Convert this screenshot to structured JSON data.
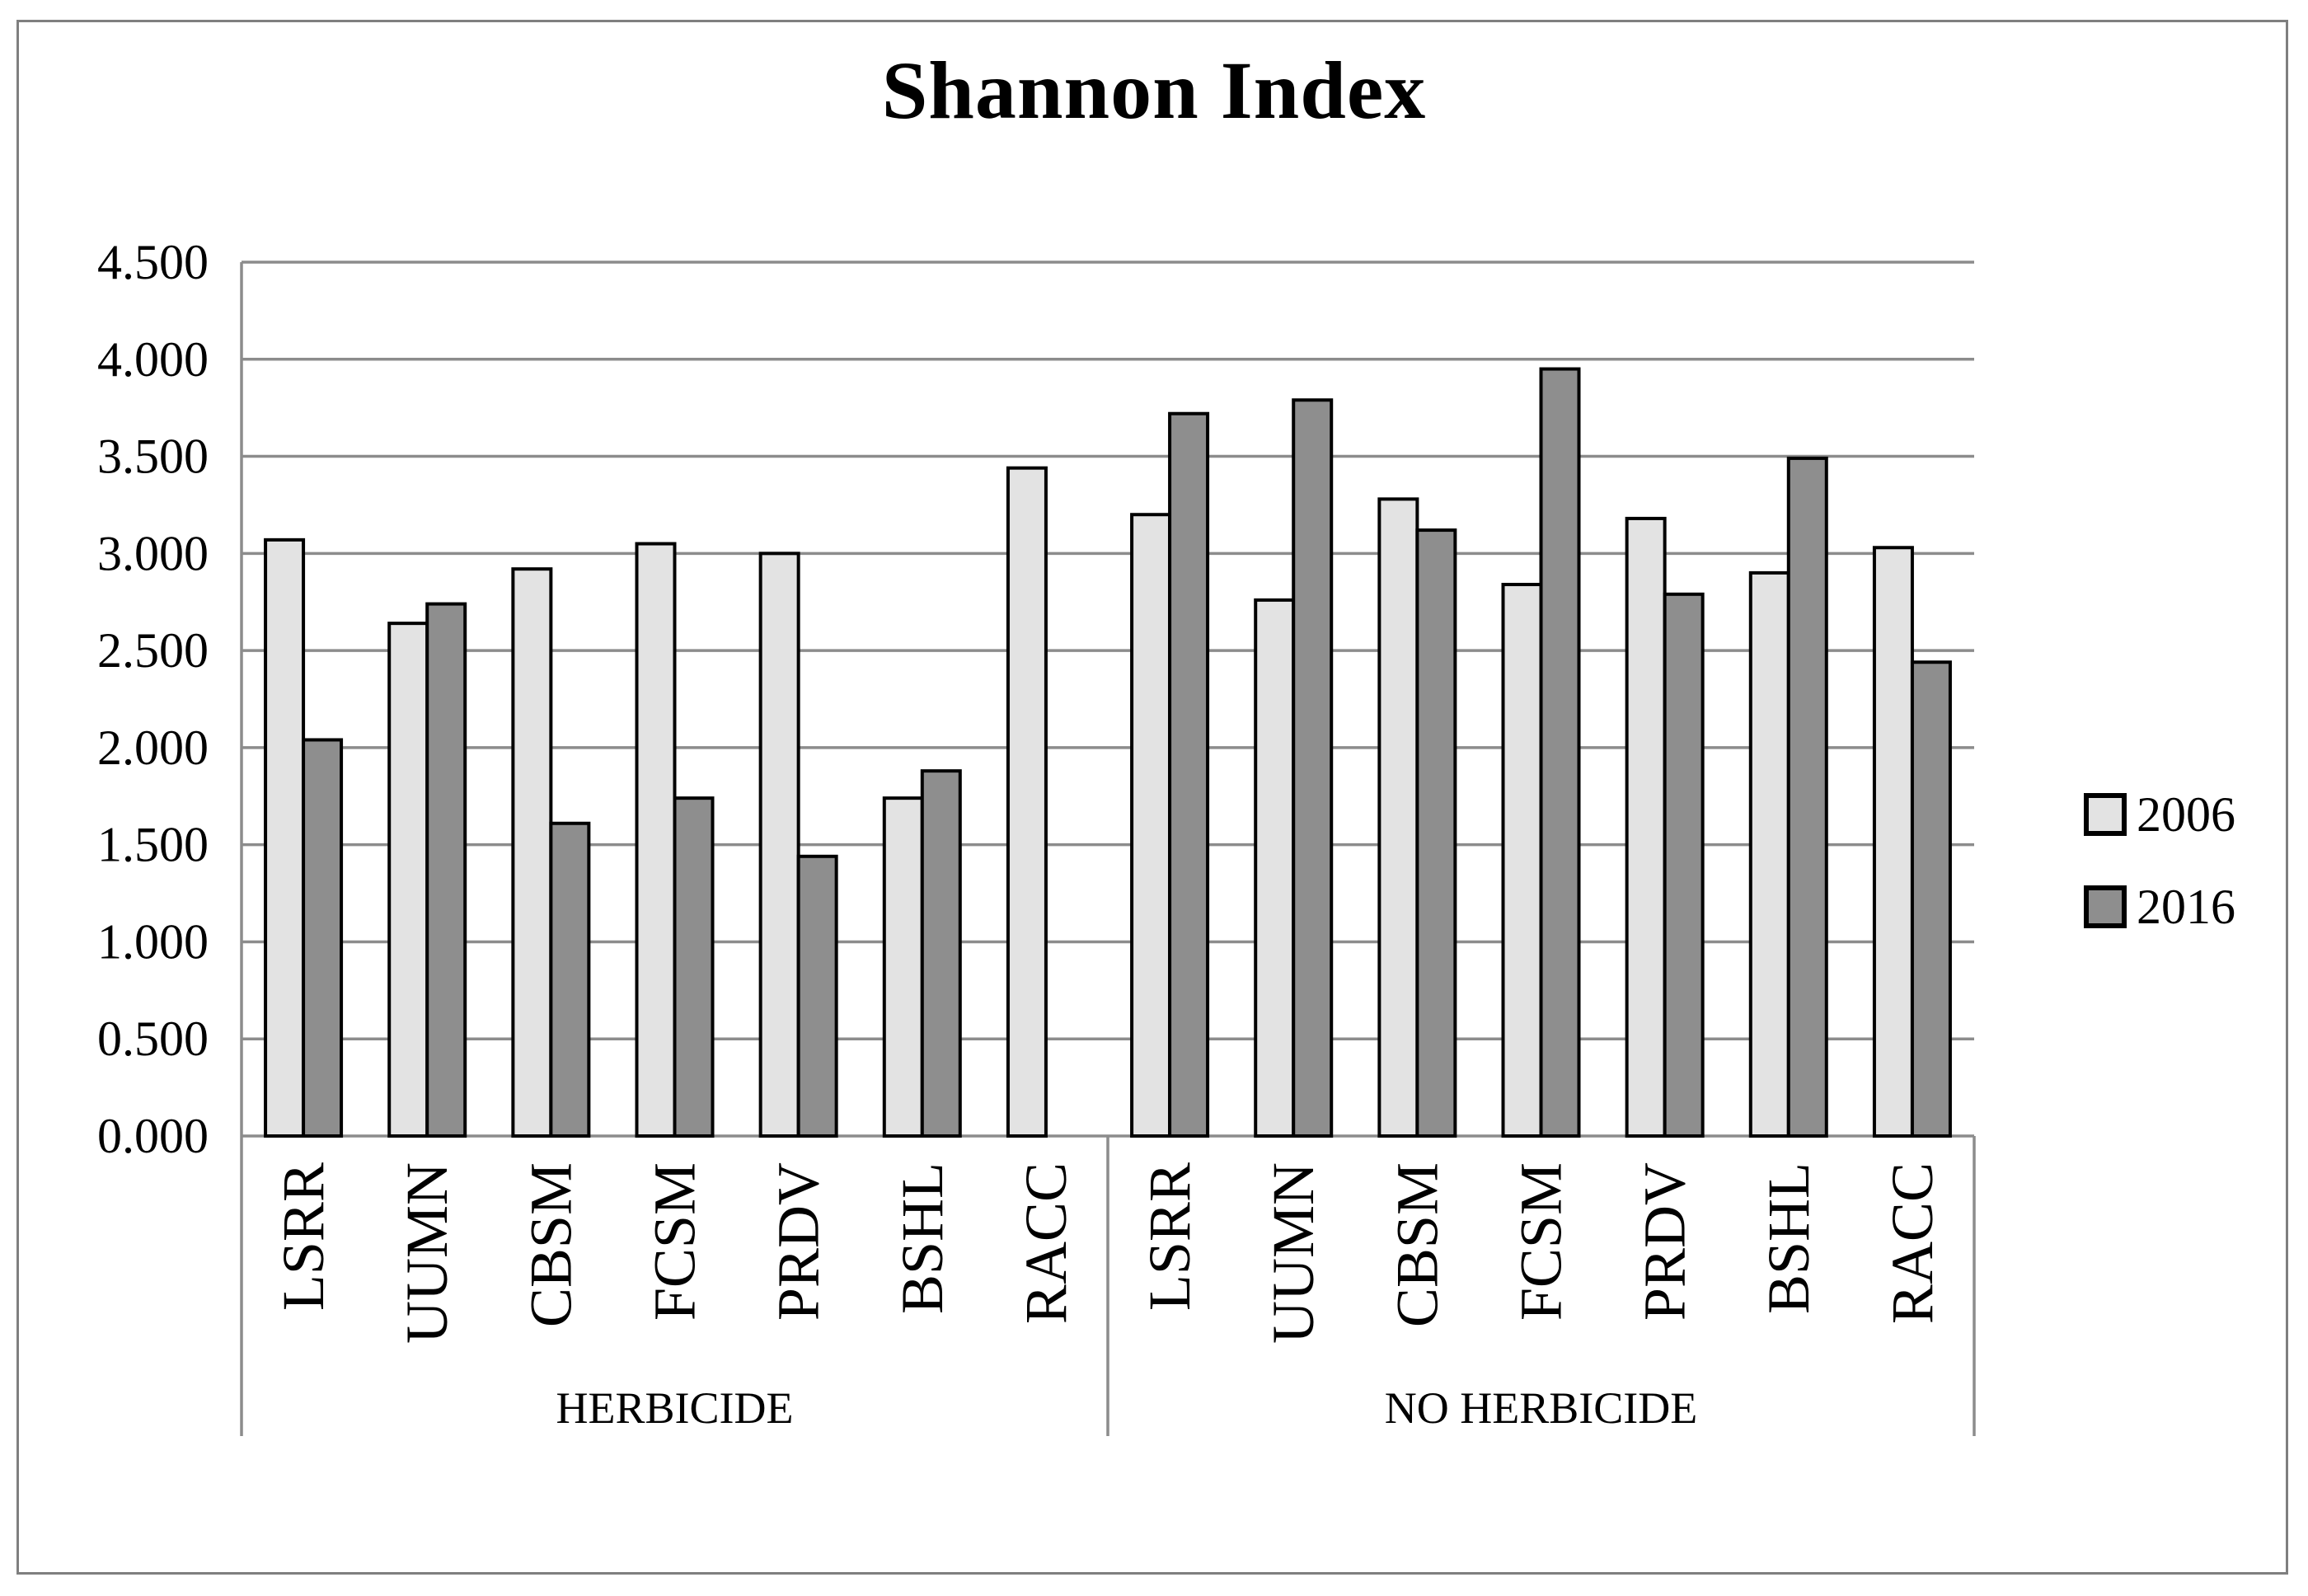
{
  "chart_data": {
    "type": "bar",
    "title": "Shannon Index",
    "ylim": [
      0,
      4.5
    ],
    "ytick_step": 0.5,
    "ytick_labels": [
      "0.000",
      "0.500",
      "1.000",
      "1.500",
      "2.000",
      "2.500",
      "3.000",
      "3.500",
      "4.000",
      "4.500"
    ],
    "legend": [
      "2006",
      "2016"
    ],
    "series_colors": {
      "2006": "#e3e3e3",
      "2016": "#8e8e8e"
    },
    "colors": {
      "grid": "#8c8c8c",
      "bar_border": "#000000",
      "figure_border": "#7f7f7f"
    },
    "layout": {
      "grid_on": true,
      "legend_position": "right"
    },
    "groups": [
      {
        "label": "HERBICIDE",
        "categories": [
          "LSRR",
          "UUMN",
          "CBSM",
          "FCSM",
          "PRDV",
          "BSHL",
          "RACC"
        ],
        "series": [
          {
            "name": "2006",
            "values": [
              3.07,
              2.64,
              2.92,
              3.05,
              3.0,
              1.74,
              3.44
            ]
          },
          {
            "name": "2016",
            "values": [
              2.04,
              2.74,
              1.61,
              1.74,
              1.44,
              1.88,
              null
            ]
          }
        ]
      },
      {
        "label": "NO HERBICIDE",
        "categories": [
          "LSRR",
          "UUMN",
          "CBSM",
          "FCSM",
          "PRDV",
          "BSHL",
          "RACC"
        ],
        "series": [
          {
            "name": "2006",
            "values": [
              3.2,
              2.76,
              3.28,
              2.84,
              3.18,
              2.9,
              3.03
            ]
          },
          {
            "name": "2016",
            "values": [
              3.72,
              3.79,
              3.12,
              3.95,
              2.79,
              3.49,
              2.44
            ]
          }
        ]
      }
    ]
  }
}
